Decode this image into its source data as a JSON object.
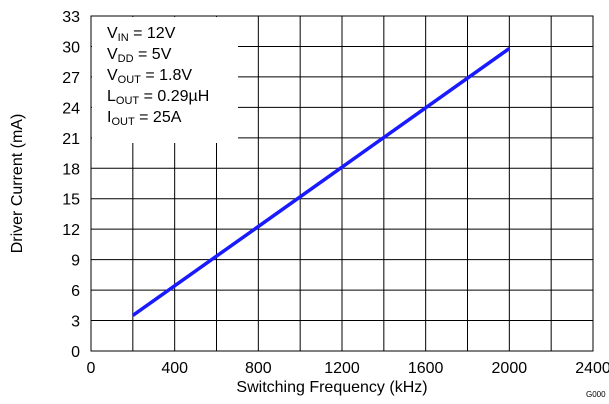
{
  "chart_data": {
    "type": "line",
    "title": "",
    "xlabel": "Switching Frequency (kHz)",
    "ylabel": "Driver Current (mA)",
    "xlim": [
      0,
      2400
    ],
    "ylim": [
      0,
      33
    ],
    "x_ticks": [
      "0",
      "400",
      "800",
      "1200",
      "1600",
      "2000",
      "2400"
    ],
    "y_ticks": [
      "0",
      "3",
      "6",
      "9",
      "12",
      "15",
      "18",
      "21",
      "24",
      "27",
      "30",
      "33"
    ],
    "grid": true,
    "figure_id": "G000",
    "series": [
      {
        "color": "#1a1aff",
        "x": [
          200,
          2000
        ],
        "y": [
          3.5,
          29.8
        ]
      }
    ],
    "conditions": [
      {
        "symbol": "V",
        "sub": "IN",
        "value": " = 12V"
      },
      {
        "symbol": "V",
        "sub": "DD",
        "value": " = 5V"
      },
      {
        "symbol": "V",
        "sub": "OUT",
        "value": " = 1.8V"
      },
      {
        "symbol": "L",
        "sub": "OUT",
        "value": " = 0.29µH"
      },
      {
        "symbol": "I",
        "sub": "OUT",
        "value": " = 25A"
      }
    ]
  }
}
